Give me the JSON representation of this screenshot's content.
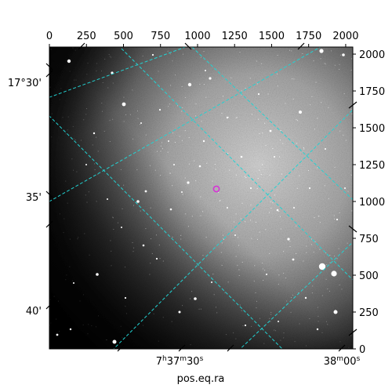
{
  "figure": {
    "xlabel": "pos.eq.ra",
    "pixel_x_ticks": [
      "0",
      "250",
      "500",
      "750",
      "1000",
      "1250",
      "1500",
      "1750",
      "2000"
    ],
    "pixel_y_ticks": [
      "0",
      "250",
      "500",
      "750",
      "1000",
      "1250",
      "1500",
      "1750",
      "2000"
    ],
    "dec_labels": [
      "17°30'",
      "35'",
      "40'"
    ],
    "ra_labels": [
      {
        "h": "7",
        "hs": "h",
        "m": "37",
        "ms": "m",
        "s": "30",
        "ss": "s"
      },
      {
        "h": "",
        "hs": "",
        "m": "38",
        "ms": "m",
        "s": "00",
        "ss": "s"
      }
    ],
    "colors": {
      "grid": "#22d3d3",
      "marker": "#d633d6",
      "frame": "#000000"
    },
    "marker_icon": "target-circle-icon"
  }
}
